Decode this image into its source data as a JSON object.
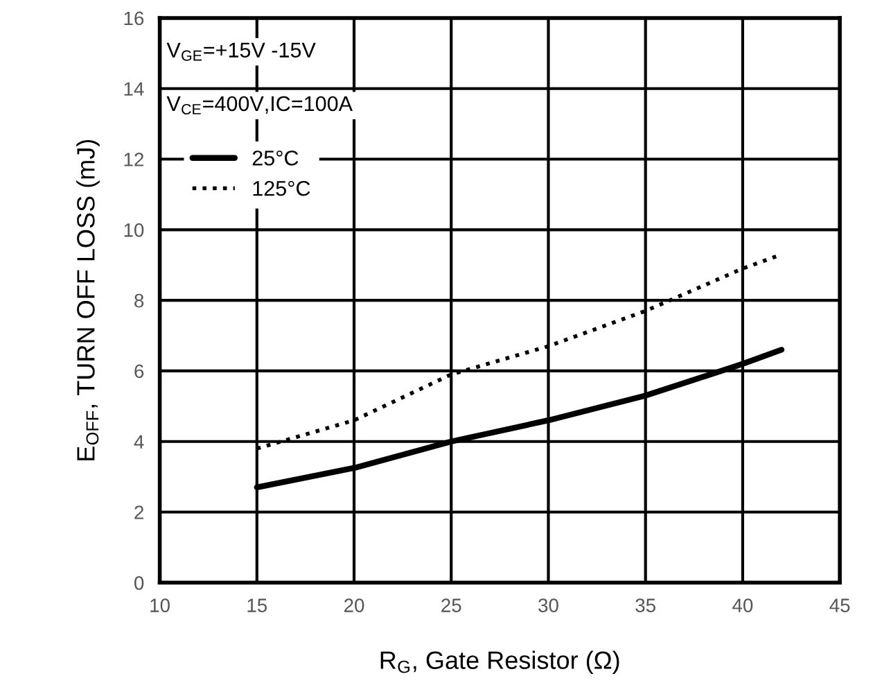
{
  "chart_data": {
    "type": "line",
    "xlabel": "R$_{G}$, Gate Resistor (Ω)",
    "ylabel": "E$_{OFF}$, TURN OFF LOSS (mJ)",
    "annotations": [
      "V$_{GE}$=+15V -15V",
      "V$_{CE}$=400V,IC=100A"
    ],
    "x": [
      15,
      20,
      25,
      30,
      35,
      40,
      42
    ],
    "series": [
      {
        "name": "25°C",
        "color": "#000000",
        "line_style": "solid",
        "values": [
          2.7,
          3.25,
          4.0,
          4.6,
          5.3,
          6.2,
          6.6
        ]
      },
      {
        "name": "125°C",
        "color": "#000000",
        "line_style": "dotted",
        "values": [
          3.8,
          4.6,
          5.9,
          6.7,
          7.7,
          8.9,
          9.3
        ]
      }
    ],
    "xlim": [
      10,
      45
    ],
    "xticks": [
      10,
      15,
      20,
      25,
      30,
      35,
      40,
      45
    ],
    "ylim": [
      0,
      16
    ],
    "yticks": [
      0,
      2,
      4,
      6,
      8,
      10,
      12,
      14,
      16
    ],
    "grid": true,
    "legend": "top left",
    "marker": "none"
  }
}
